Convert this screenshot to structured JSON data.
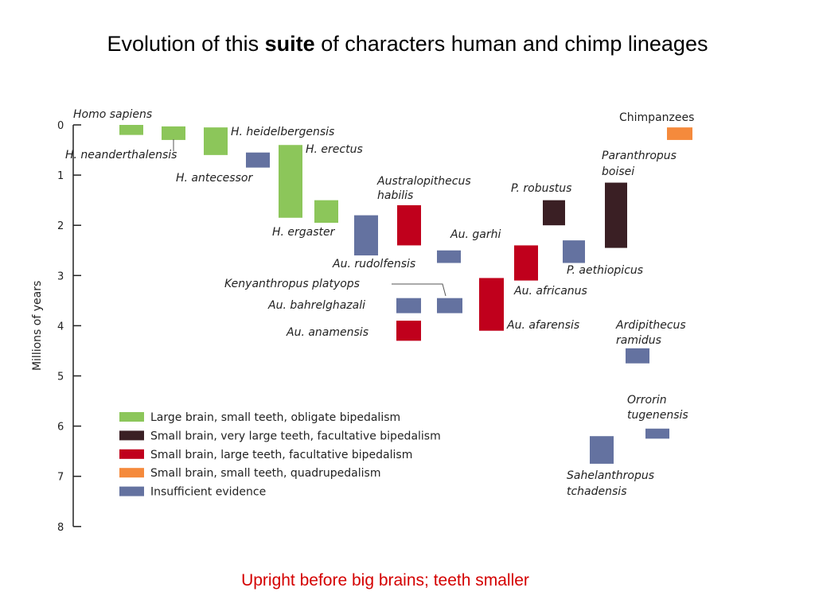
{
  "title": {
    "part1": "Evolution of this ",
    "bold": "suite",
    "part2": " of characters human and chimp lineages"
  },
  "caption": "Upright before big brains; teeth smaller",
  "chart_data": {
    "type": "range-bar",
    "ylabel": "Millions of years",
    "ylim": [
      0,
      8
    ],
    "yticks": [
      0,
      1,
      2,
      3,
      4,
      5,
      6,
      7,
      8
    ],
    "y_inverted": true,
    "categories": [
      {
        "key": "green",
        "label": "Large brain, small teeth, obligate bipedalism",
        "color": "#8cc65a"
      },
      {
        "key": "dark",
        "label": "Small brain, very large teeth, facultative bipedalism",
        "color": "#3a1f24"
      },
      {
        "key": "red",
        "label": "Small brain, large teeth, facultative bipedalism",
        "color": "#c0001c"
      },
      {
        "key": "orange",
        "label": "Small brain, small teeth, quadrupedalism",
        "color": "#f58a3c"
      },
      {
        "key": "blue",
        "label": "Insufficient evidence",
        "color": "#6472a0"
      }
    ],
    "species": [
      {
        "name": "Homo sapiens",
        "category": "green",
        "start": 0.0,
        "end": 0.2
      },
      {
        "name": "H. neanderthalensis",
        "category": "green",
        "start": 0.03,
        "end": 0.3
      },
      {
        "name": "H. heidelbergensis",
        "category": "green",
        "start": 0.05,
        "end": 0.6
      },
      {
        "name": "H. antecessor",
        "category": "blue",
        "start": 0.55,
        "end": 0.85
      },
      {
        "name": "H. erectus",
        "category": "green",
        "start": 0.4,
        "end": 1.85
      },
      {
        "name": "H. ergaster",
        "category": "green",
        "start": 1.5,
        "end": 1.95
      },
      {
        "name": "Au. rudolfensis",
        "category": "blue",
        "start": 1.8,
        "end": 2.6
      },
      {
        "name": "Australopithecus habilis",
        "category": "red",
        "start": 1.6,
        "end": 2.4
      },
      {
        "name": "Au. garhi",
        "category": "blue",
        "start": 2.5,
        "end": 2.75
      },
      {
        "name": "Au. africanus",
        "category": "red",
        "start": 2.4,
        "end": 3.1
      },
      {
        "name": "P. robustus",
        "category": "dark",
        "start": 1.5,
        "end": 2.0
      },
      {
        "name": "Paranthropus boisei",
        "category": "dark",
        "start": 1.15,
        "end": 2.45
      },
      {
        "name": "P. aethiopicus",
        "category": "blue",
        "start": 2.3,
        "end": 2.75
      },
      {
        "name": "Chimpanzees",
        "category": "orange",
        "start": 0.05,
        "end": 0.3
      },
      {
        "name": "Kenyanthropus platyops",
        "category": "blue",
        "start": 3.45,
        "end": 3.75
      },
      {
        "name": "Au. bahrelghazali",
        "category": "blue",
        "start": 3.45,
        "end": 3.75
      },
      {
        "name": "Au. afarensis",
        "category": "red",
        "start": 3.05,
        "end": 4.1
      },
      {
        "name": "Au. anamensis",
        "category": "red",
        "start": 3.9,
        "end": 4.3
      },
      {
        "name": "Ardipithecus ramidus",
        "category": "blue",
        "start": 4.45,
        "end": 4.75
      },
      {
        "name": "Orrorin tugenensis",
        "category": "blue",
        "start": 6.05,
        "end": 6.25
      },
      {
        "name": "Sahelanthropus tchadensis",
        "category": "blue",
        "start": 6.2,
        "end": 6.75
      }
    ]
  }
}
